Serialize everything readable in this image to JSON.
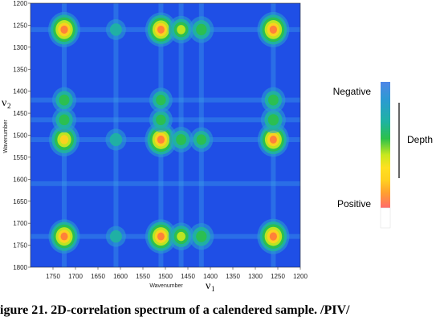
{
  "caption": "igure 21. 2D-correlation spectrum of a calendered sample. /PIV/",
  "colors": {
    "background_blue": "#1f4fe6",
    "negative": "#4f86e8",
    "positive": "#ff6b6b",
    "legend_line": "#000000"
  },
  "legend": {
    "negative_label": "Negative",
    "positive_label": "Positive",
    "depth_label": "Depth",
    "gradient": [
      "#4f86e8",
      "#2a9bd0",
      "#1fb3a0",
      "#2cc04a",
      "#c8e81e",
      "#ffe020",
      "#ffd020",
      "#ffa030",
      "#ff6b6b"
    ]
  },
  "chart_data": {
    "type": "heatmap",
    "title": "",
    "xlabel": "Wavenumber",
    "ylabel": "Wavenumber",
    "x_symbol": "ν",
    "x_symbol_sub": "1",
    "y_symbol": "ν",
    "y_symbol_sub": "2",
    "xlim": [
      1800,
      1200
    ],
    "ylim": [
      1200,
      1800
    ],
    "x_ticks": [
      1750,
      1700,
      1650,
      1600,
      1550,
      1500,
      1450,
      1400,
      1350,
      1300,
      1250,
      1200
    ],
    "y_ticks": [
      1200,
      1250,
      1300,
      1350,
      1400,
      1450,
      1500,
      1550,
      1600,
      1650,
      1700,
      1750,
      1800
    ],
    "peaks": [
      {
        "x": 1725,
        "y": 1260,
        "intensity": 1.0
      },
      {
        "x": 1725,
        "y": 1510,
        "intensity": 0.9
      },
      {
        "x": 1725,
        "y": 1730,
        "intensity": 0.95
      },
      {
        "x": 1510,
        "y": 1260,
        "intensity": 0.95
      },
      {
        "x": 1510,
        "y": 1510,
        "intensity": 1.0
      },
      {
        "x": 1510,
        "y": 1730,
        "intensity": 0.95
      },
      {
        "x": 1260,
        "y": 1260,
        "intensity": 1.0
      },
      {
        "x": 1260,
        "y": 1510,
        "intensity": 0.95
      },
      {
        "x": 1260,
        "y": 1730,
        "intensity": 1.0
      },
      {
        "x": 1465,
        "y": 1260,
        "intensity": 0.6
      },
      {
        "x": 1420,
        "y": 1260,
        "intensity": 0.55
      },
      {
        "x": 1465,
        "y": 1730,
        "intensity": 0.6
      },
      {
        "x": 1420,
        "y": 1730,
        "intensity": 0.55
      },
      {
        "x": 1465,
        "y": 1510,
        "intensity": 0.5
      },
      {
        "x": 1420,
        "y": 1510,
        "intensity": 0.45
      },
      {
        "x": 1725,
        "y": 1465,
        "intensity": 0.5
      },
      {
        "x": 1725,
        "y": 1420,
        "intensity": 0.5
      },
      {
        "x": 1260,
        "y": 1465,
        "intensity": 0.55
      },
      {
        "x": 1260,
        "y": 1420,
        "intensity": 0.5
      },
      {
        "x": 1510,
        "y": 1465,
        "intensity": 0.45
      },
      {
        "x": 1510,
        "y": 1420,
        "intensity": 0.45
      },
      {
        "x": 1610,
        "y": 1510,
        "intensity": 0.3
      },
      {
        "x": 1610,
        "y": 1260,
        "intensity": 0.25
      },
      {
        "x": 1610,
        "y": 1730,
        "intensity": 0.25
      }
    ]
  }
}
